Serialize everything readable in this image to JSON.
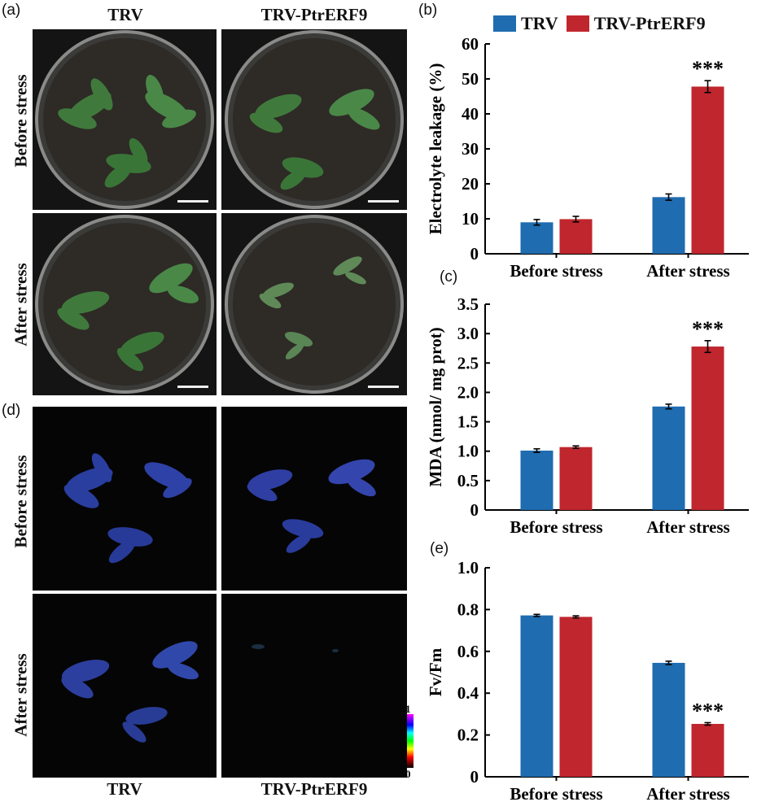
{
  "panel_labels": {
    "a": "(a)",
    "b": "(b)",
    "c": "(c)",
    "d": "(d)",
    "e": "(e)"
  },
  "photo_columns": {
    "left": "TRV",
    "right": "TRV-PtrERF9"
  },
  "photo_rows": {
    "before": "Before stress",
    "after": "After stress"
  },
  "fluor_columns": {
    "left": "TRV",
    "right": "TRV-PtrERF9"
  },
  "colorbar": {
    "min_label": "0",
    "max_label": "1"
  },
  "colors": {
    "trv": "#1f6cb0",
    "ptrerf9": "#c0262d",
    "photo_bg": "#111111",
    "fluor_bg": "#050505"
  },
  "legend": [
    {
      "label": "TRV",
      "color": "#1f6cb0"
    },
    {
      "label": "TRV-PtrERF9",
      "color": "#c0262d"
    }
  ],
  "chart_data": [
    {
      "type": "bar",
      "panel": "b",
      "categories": [
        "Before stress",
        "After stress"
      ],
      "series": [
        {
          "name": "TRV",
          "values": [
            9.0,
            16.2
          ],
          "errors": [
            0.8,
            0.9
          ]
        },
        {
          "name": "TRV-PtrERF9",
          "values": [
            9.9,
            47.8
          ],
          "errors": [
            0.8,
            1.7
          ]
        }
      ],
      "ylabel": "Electrolyte leakage (%)",
      "ylim": [
        0,
        60
      ],
      "yticks": [
        "0",
        "10",
        "20",
        "30",
        "40",
        "50",
        "60"
      ],
      "annotations": [
        {
          "category": "After stress",
          "series": "TRV-PtrERF9",
          "text": "***"
        }
      ]
    },
    {
      "type": "bar",
      "panel": "c",
      "categories": [
        "Before stress",
        "After stress"
      ],
      "series": [
        {
          "name": "TRV",
          "values": [
            1.01,
            1.76
          ],
          "errors": [
            0.03,
            0.04
          ]
        },
        {
          "name": "TRV-PtrERF9",
          "values": [
            1.07,
            2.78
          ],
          "errors": [
            0.02,
            0.1
          ]
        }
      ],
      "ylabel": "MDA (nmol/ mg prot)",
      "ylim": [
        0,
        3.5
      ],
      "yticks": [
        "0",
        "0.5",
        "1.0",
        "1.5",
        "2.0",
        "2.5",
        "3.0",
        "3.5"
      ],
      "annotations": [
        {
          "category": "After stress",
          "series": "TRV-PtrERF9",
          "text": "***"
        }
      ]
    },
    {
      "type": "bar",
      "panel": "e",
      "categories": [
        "Before stress",
        "After stress"
      ],
      "series": [
        {
          "name": "TRV",
          "values": [
            0.772,
            0.545
          ],
          "errors": [
            0.005,
            0.008
          ]
        },
        {
          "name": "TRV-PtrERF9",
          "values": [
            0.765,
            0.253
          ],
          "errors": [
            0.005,
            0.006
          ]
        }
      ],
      "ylabel": "Fv/Fm",
      "ylim": [
        0,
        1.0
      ],
      "yticks": [
        "0",
        "0.2",
        "0.4",
        "0.6",
        "0.8",
        "1.0"
      ],
      "annotations": [
        {
          "category": "After stress",
          "series": "TRV-PtrERF9",
          "text": "***"
        }
      ]
    }
  ]
}
